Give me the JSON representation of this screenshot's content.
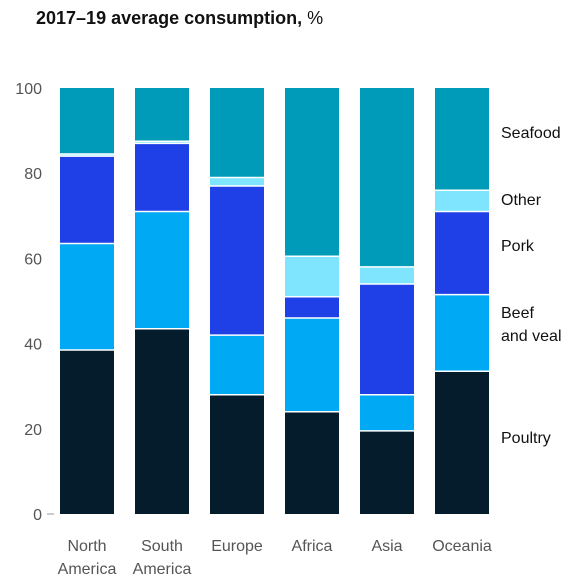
{
  "title_bold": "2017–19 average consumption,",
  "title_unit": "%",
  "chart_data": {
    "type": "bar",
    "stacked": true,
    "categories": [
      [
        "North",
        "America"
      ],
      [
        "South",
        "America"
      ],
      [
        "Europe"
      ],
      [
        "Africa"
      ],
      [
        "Asia"
      ],
      [
        "Oceania"
      ]
    ],
    "yticks": [
      "100",
      "80",
      "60",
      "40",
      "20",
      "0"
    ],
    "ylim": [
      0,
      100
    ],
    "series": [
      {
        "name": "Poultry",
        "color": "#051c2c",
        "values": [
          38.5,
          43.5,
          28,
          24,
          19.5,
          33.5
        ]
      },
      {
        "name": "Beef and veal",
        "color": "#00a9f4",
        "values": [
          25,
          27.5,
          14,
          22,
          8.5,
          18
        ]
      },
      {
        "name": "Pork",
        "color": "#1f40e6",
        "values": [
          20.5,
          16,
          35,
          5,
          26,
          19.5
        ]
      },
      {
        "name": "Other",
        "color": "#7fe5ff",
        "values": [
          0.5,
          0.5,
          2,
          9.5,
          4,
          5
        ]
      },
      {
        "name": "Seafood",
        "color": "#009bb8",
        "values": [
          15.5,
          12.5,
          21,
          39.5,
          42,
          24
        ]
      }
    ],
    "legend": [
      {
        "lines": [
          "Seafood"
        ]
      },
      {
        "lines": [
          "Other"
        ]
      },
      {
        "lines": [
          "Pork"
        ]
      },
      {
        "lines": [
          "Beef",
          "and veal"
        ]
      },
      {
        "lines": [
          "Poultry"
        ]
      }
    ]
  }
}
